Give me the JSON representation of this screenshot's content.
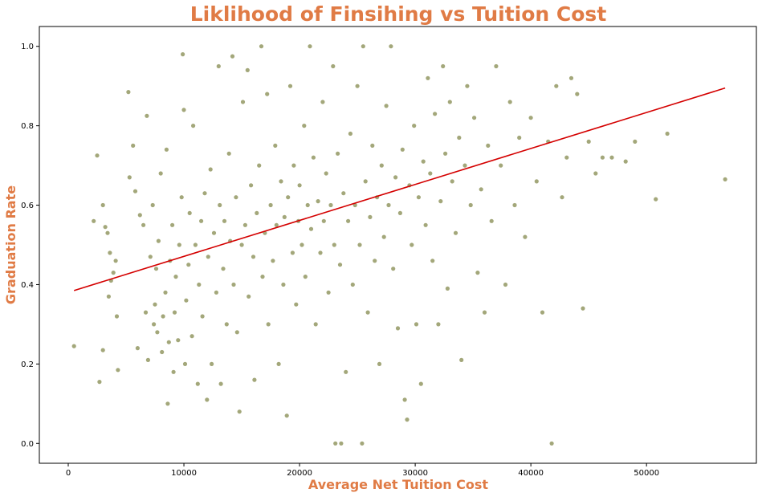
{
  "chart_data": {
    "type": "scatter",
    "title": "Liklihood of Finsihing vs Tuition Cost",
    "xlabel": "Average Net Tuition Cost",
    "ylabel": "Graduation Rate",
    "xlim": [
      -2500,
      59500
    ],
    "ylim": [
      -0.05,
      1.05
    ],
    "x_ticks": [
      0,
      10000,
      20000,
      30000,
      40000,
      50000
    ],
    "x_tick_labels": [
      "0",
      "10000",
      "20000",
      "30000",
      "40000",
      "50000"
    ],
    "y_ticks": [
      0.0,
      0.2,
      0.4,
      0.6,
      0.8,
      1.0
    ],
    "y_tick_labels": [
      "0.0",
      "0.2",
      "0.4",
      "0.6",
      "0.8",
      "1.0"
    ],
    "grid": false,
    "colors": {
      "points": "#a3a77a",
      "trend_line": "#d40000",
      "title": "#e07b45",
      "axis_labels": "#e07b45"
    },
    "trend_line": {
      "x": [
        500,
        56800
      ],
      "y": [
        0.385,
        0.895
      ]
    },
    "points": [
      [
        500,
        0.245
      ],
      [
        2200,
        0.56
      ],
      [
        2500,
        0.725
      ],
      [
        2700,
        0.155
      ],
      [
        3000,
        0.235
      ],
      [
        3000,
        0.6
      ],
      [
        3200,
        0.545
      ],
      [
        3400,
        0.53
      ],
      [
        3600,
        0.48
      ],
      [
        3700,
        0.41
      ],
      [
        3900,
        0.43
      ],
      [
        4100,
        0.46
      ],
      [
        4200,
        0.32
      ],
      [
        4300,
        0.185
      ],
      [
        3500,
        0.37
      ],
      [
        5200,
        0.885
      ],
      [
        5300,
        0.67
      ],
      [
        5600,
        0.75
      ],
      [
        5800,
        0.635
      ],
      [
        6000,
        0.24
      ],
      [
        6200,
        0.575
      ],
      [
        6500,
        0.55
      ],
      [
        6700,
        0.33
      ],
      [
        6800,
        0.825
      ],
      [
        6900,
        0.21
      ],
      [
        7100,
        0.47
      ],
      [
        7300,
        0.6
      ],
      [
        7400,
        0.3
      ],
      [
        7500,
        0.35
      ],
      [
        7600,
        0.44
      ],
      [
        7700,
        0.28
      ],
      [
        7800,
        0.51
      ],
      [
        8000,
        0.68
      ],
      [
        8100,
        0.23
      ],
      [
        8200,
        0.32
      ],
      [
        8400,
        0.38
      ],
      [
        8500,
        0.74
      ],
      [
        8600,
        0.1
      ],
      [
        8700,
        0.255
      ],
      [
        8800,
        0.46
      ],
      [
        9000,
        0.55
      ],
      [
        9100,
        0.18
      ],
      [
        9200,
        0.33
      ],
      [
        9300,
        0.42
      ],
      [
        9500,
        0.26
      ],
      [
        9600,
        0.5
      ],
      [
        9800,
        0.62
      ],
      [
        9900,
        0.98
      ],
      [
        10000,
        0.84
      ],
      [
        10100,
        0.2
      ],
      [
        10200,
        0.36
      ],
      [
        10400,
        0.45
      ],
      [
        10500,
        0.58
      ],
      [
        10700,
        0.27
      ],
      [
        10800,
        0.8
      ],
      [
        11000,
        0.5
      ],
      [
        11200,
        0.15
      ],
      [
        11300,
        0.4
      ],
      [
        11500,
        0.56
      ],
      [
        11600,
        0.32
      ],
      [
        11800,
        0.63
      ],
      [
        12000,
        0.11
      ],
      [
        12100,
        0.47
      ],
      [
        12300,
        0.69
      ],
      [
        12400,
        0.2
      ],
      [
        12600,
        0.53
      ],
      [
        12800,
        0.38
      ],
      [
        13000,
        0.95
      ],
      [
        13100,
        0.6
      ],
      [
        13200,
        0.15
      ],
      [
        13400,
        0.44
      ],
      [
        13500,
        0.56
      ],
      [
        13700,
        0.3
      ],
      [
        13900,
        0.73
      ],
      [
        14000,
        0.51
      ],
      [
        14200,
        0.975
      ],
      [
        14300,
        0.4
      ],
      [
        14500,
        0.62
      ],
      [
        14600,
        0.28
      ],
      [
        14800,
        0.08
      ],
      [
        15000,
        0.5
      ],
      [
        15100,
        0.86
      ],
      [
        15300,
        0.55
      ],
      [
        15500,
        0.94
      ],
      [
        15600,
        0.37
      ],
      [
        15800,
        0.65
      ],
      [
        16000,
        0.47
      ],
      [
        16100,
        0.16
      ],
      [
        16300,
        0.58
      ],
      [
        16500,
        0.7
      ],
      [
        16700,
        1.0
      ],
      [
        16800,
        0.42
      ],
      [
        17000,
        0.53
      ],
      [
        17200,
        0.88
      ],
      [
        17300,
        0.3
      ],
      [
        17500,
        0.6
      ],
      [
        17700,
        0.46
      ],
      [
        17900,
        0.75
      ],
      [
        18000,
        0.55
      ],
      [
        18200,
        0.2
      ],
      [
        18400,
        0.66
      ],
      [
        18600,
        0.4
      ],
      [
        18700,
        0.57
      ],
      [
        18900,
        0.07
      ],
      [
        19000,
        0.62
      ],
      [
        19200,
        0.9
      ],
      [
        19400,
        0.48
      ],
      [
        19500,
        0.7
      ],
      [
        19700,
        0.35
      ],
      [
        19900,
        0.56
      ],
      [
        20000,
        0.65
      ],
      [
        20200,
        0.5
      ],
      [
        20400,
        0.8
      ],
      [
        20500,
        0.42
      ],
      [
        20700,
        0.6
      ],
      [
        20900,
        1.0
      ],
      [
        21000,
        0.54
      ],
      [
        21200,
        0.72
      ],
      [
        21400,
        0.3
      ],
      [
        21600,
        0.61
      ],
      [
        21800,
        0.48
      ],
      [
        22000,
        0.86
      ],
      [
        22100,
        0.56
      ],
      [
        22300,
        0.68
      ],
      [
        22500,
        0.38
      ],
      [
        22700,
        0.6
      ],
      [
        22900,
        0.95
      ],
      [
        23000,
        0.5
      ],
      [
        23100,
        0.0
      ],
      [
        23300,
        0.73
      ],
      [
        23500,
        0.45
      ],
      [
        23600,
        0.0
      ],
      [
        23800,
        0.63
      ],
      [
        24000,
        0.18
      ],
      [
        24200,
        0.56
      ],
      [
        24400,
        0.78
      ],
      [
        24600,
        0.4
      ],
      [
        24800,
        0.6
      ],
      [
        25000,
        0.9
      ],
      [
        25200,
        0.5
      ],
      [
        25400,
        0.0
      ],
      [
        25500,
        1.0
      ],
      [
        25700,
        0.66
      ],
      [
        25900,
        0.33
      ],
      [
        26100,
        0.57
      ],
      [
        26300,
        0.75
      ],
      [
        26500,
        0.46
      ],
      [
        26700,
        0.62
      ],
      [
        26900,
        0.2
      ],
      [
        27100,
        0.7
      ],
      [
        27300,
        0.52
      ],
      [
        27500,
        0.85
      ],
      [
        27700,
        0.6
      ],
      [
        27900,
        1.0
      ],
      [
        28100,
        0.44
      ],
      [
        28300,
        0.67
      ],
      [
        28500,
        0.29
      ],
      [
        28700,
        0.58
      ],
      [
        28900,
        0.74
      ],
      [
        29100,
        0.11
      ],
      [
        29300,
        0.06
      ],
      [
        29500,
        0.65
      ],
      [
        29700,
        0.5
      ],
      [
        29900,
        0.8
      ],
      [
        30100,
        0.3
      ],
      [
        30300,
        0.62
      ],
      [
        30500,
        0.15
      ],
      [
        30700,
        0.71
      ],
      [
        30900,
        0.55
      ],
      [
        31100,
        0.92
      ],
      [
        31300,
        0.68
      ],
      [
        31500,
        0.46
      ],
      [
        31700,
        0.83
      ],
      [
        32000,
        0.3
      ],
      [
        32200,
        0.61
      ],
      [
        32400,
        0.95
      ],
      [
        32600,
        0.73
      ],
      [
        32800,
        0.39
      ],
      [
        33000,
        0.86
      ],
      [
        33200,
        0.66
      ],
      [
        33500,
        0.53
      ],
      [
        33800,
        0.77
      ],
      [
        34000,
        0.21
      ],
      [
        34300,
        0.7
      ],
      [
        34500,
        0.9
      ],
      [
        34800,
        0.6
      ],
      [
        35100,
        0.82
      ],
      [
        35400,
        0.43
      ],
      [
        35700,
        0.64
      ],
      [
        36000,
        0.33
      ],
      [
        36300,
        0.75
      ],
      [
        36600,
        0.56
      ],
      [
        37000,
        0.95
      ],
      [
        37400,
        0.7
      ],
      [
        37800,
        0.4
      ],
      [
        38200,
        0.86
      ],
      [
        38600,
        0.6
      ],
      [
        39000,
        0.77
      ],
      [
        39500,
        0.52
      ],
      [
        40000,
        0.82
      ],
      [
        40500,
        0.66
      ],
      [
        41000,
        0.33
      ],
      [
        41500,
        0.76
      ],
      [
        41800,
        0.0
      ],
      [
        42200,
        0.9
      ],
      [
        42700,
        0.62
      ],
      [
        43100,
        0.72
      ],
      [
        43500,
        0.92
      ],
      [
        44000,
        0.88
      ],
      [
        44500,
        0.34
      ],
      [
        45000,
        0.76
      ],
      [
        45600,
        0.68
      ],
      [
        46200,
        0.72
      ],
      [
        47000,
        0.72
      ],
      [
        48200,
        0.71
      ],
      [
        49000,
        0.76
      ],
      [
        50800,
        0.615
      ],
      [
        51800,
        0.78
      ],
      [
        56800,
        0.665
      ]
    ]
  }
}
